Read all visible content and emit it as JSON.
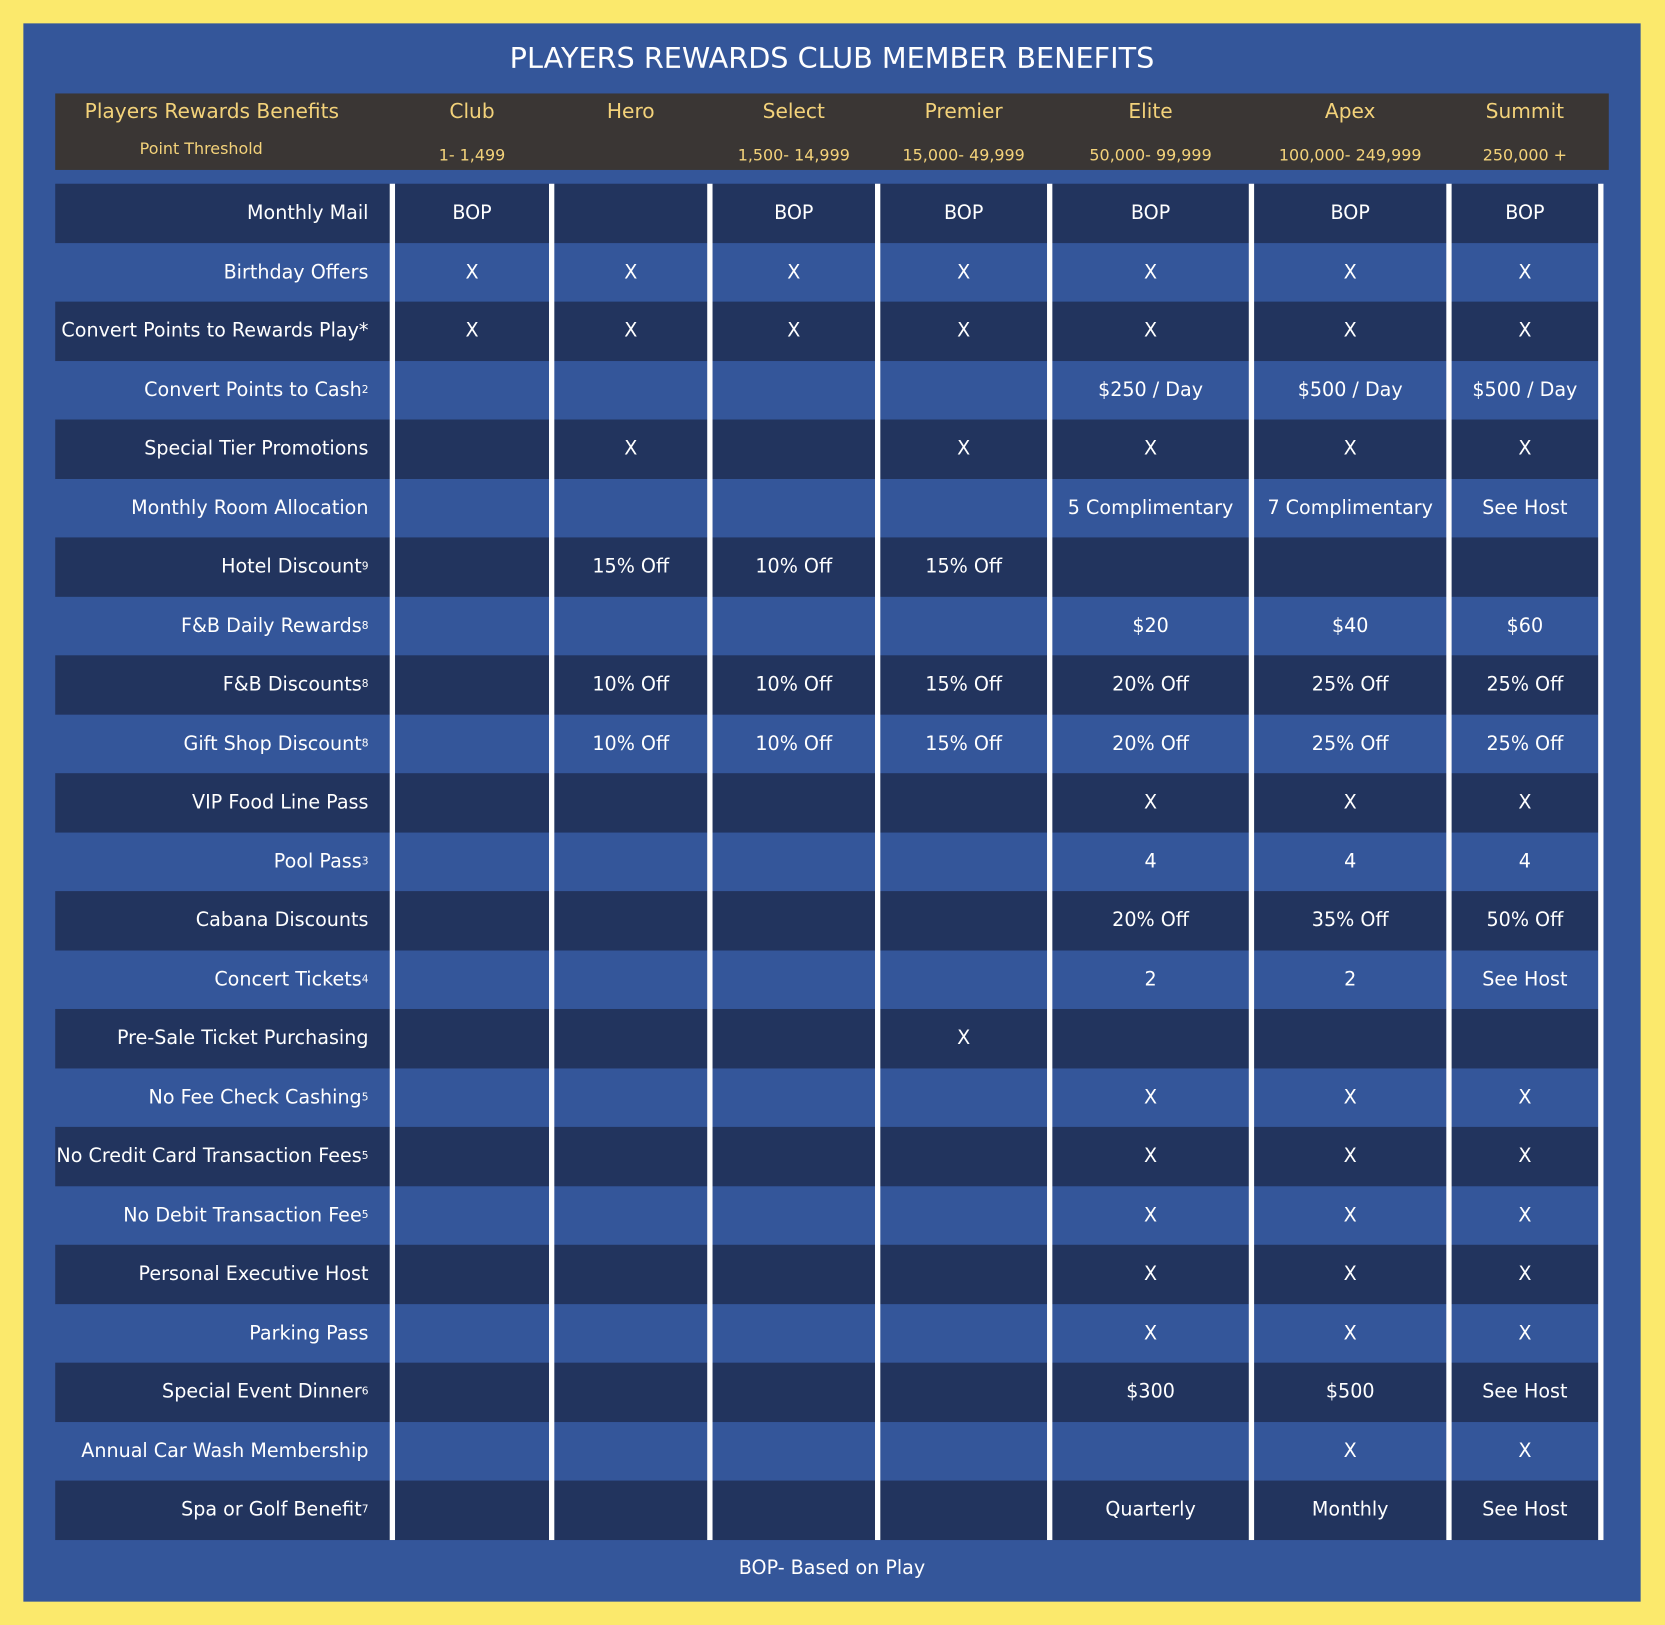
{
  "title": "PLAYERS REWARDS CLUB MEMBER BENEFITS",
  "header": {
    "label": "Players Rewards Benefits",
    "threshold_label": "Point Threshold",
    "columns": [
      {
        "name": "Club",
        "threshold": "1- 1,499"
      },
      {
        "name": "Hero",
        "threshold": null
      },
      {
        "name": "Select",
        "threshold": "1,500- 14,999"
      },
      {
        "name": "Premier",
        "threshold": "15,000- 49,999"
      },
      {
        "name": "Elite",
        "threshold": "50,000- 99,999"
      },
      {
        "name": "Apex",
        "threshold": "100,000- 249,999"
      },
      {
        "name": "Summit",
        "threshold": "250,000 +"
      }
    ]
  },
  "table": {
    "rows": [
      {
        "label": "Monthly Mail",
        "note": null,
        "cells": [
          "BOP",
          null,
          "BOP",
          "BOP",
          "BOP",
          "BOP",
          "BOP"
        ]
      },
      {
        "label": "Birthday Offers",
        "note": null,
        "cells": [
          "X",
          "X",
          "X",
          "X",
          "X",
          "X",
          "X"
        ]
      },
      {
        "label": "Convert Points to Rewards Play*",
        "note": null,
        "cells": [
          "X",
          "X",
          "X",
          "X",
          "X",
          "X",
          "X"
        ]
      },
      {
        "label": "Convert Points to Cash",
        "note": "2",
        "cells": [
          null,
          null,
          null,
          null,
          "$250 / Day",
          "$500 / Day",
          "$500 / Day"
        ]
      },
      {
        "label": "Special Tier Promotions",
        "note": null,
        "cells": [
          null,
          "X",
          null,
          "X",
          "X",
          "X",
          "X"
        ]
      },
      {
        "label": "Monthly Room Allocation",
        "note": null,
        "cells": [
          null,
          null,
          null,
          null,
          "5 Complimentary",
          "7 Complimentary",
          "See Host"
        ]
      },
      {
        "label": "Hotel Discount",
        "note": "9",
        "cells": [
          null,
          "15% Off",
          "10% Off",
          "15% Off",
          null,
          null,
          null
        ]
      },
      {
        "label": "F&B Daily Rewards",
        "note": "8",
        "cells": [
          null,
          null,
          null,
          null,
          "$20",
          "$40",
          "$60"
        ]
      },
      {
        "label": "F&B Discounts",
        "note": "8",
        "cells": [
          null,
          "10% Off",
          "10% Off",
          "15% Off",
          "20% Off",
          "25% Off",
          "25% Off"
        ]
      },
      {
        "label": "Gift Shop Discount",
        "note": "8",
        "cells": [
          null,
          "10% Off",
          "10% Off",
          "15% Off",
          "20% Off",
          "25% Off",
          "25% Off"
        ]
      },
      {
        "label": "VIP Food Line Pass",
        "note": null,
        "cells": [
          null,
          null,
          null,
          null,
          "X",
          "X",
          "X"
        ]
      },
      {
        "label": "Pool Pass",
        "note": "3",
        "cells": [
          null,
          null,
          null,
          null,
          "4",
          "4",
          "4"
        ]
      },
      {
        "label": "Cabana Discounts",
        "note": null,
        "cells": [
          null,
          null,
          null,
          null,
          "20% Off",
          "35% Off",
          "50% Off"
        ]
      },
      {
        "label": "Concert Tickets",
        "note": "4",
        "cells": [
          null,
          null,
          null,
          null,
          "2",
          "2",
          "See Host"
        ]
      },
      {
        "label": "Pre-Sale Ticket Purchasing",
        "note": null,
        "cells": [
          null,
          null,
          null,
          "X",
          null,
          null,
          null
        ]
      },
      {
        "label": "No Fee Check Cashing",
        "note": "5",
        "cells": [
          null,
          null,
          null,
          null,
          "X",
          "X",
          "X"
        ]
      },
      {
        "label": "No Credit Card Transaction Fees",
        "note": "5",
        "cells": [
          null,
          null,
          null,
          null,
          "X",
          "X",
          "X"
        ]
      },
      {
        "label": "No Debit Transaction Fee",
        "note": "5",
        "cells": [
          null,
          null,
          null,
          null,
          "X",
          "X",
          "X"
        ]
      },
      {
        "label": "Personal Executive Host",
        "note": null,
        "cells": [
          null,
          null,
          null,
          null,
          "X",
          "X",
          "X"
        ]
      },
      {
        "label": "Parking Pass",
        "note": null,
        "cells": [
          null,
          null,
          null,
          null,
          "X",
          "X",
          "X"
        ]
      },
      {
        "label": "Special Event Dinner",
        "note": "6",
        "cells": [
          null,
          null,
          null,
          null,
          "$300",
          "$500",
          "See Host"
        ]
      },
      {
        "label": "Annual Car Wash Membership",
        "note": null,
        "cells": [
          null,
          null,
          null,
          null,
          null,
          "X",
          "X"
        ]
      },
      {
        "label": "Spa or Golf Benefit",
        "note": "7",
        "cells": [
          null,
          null,
          null,
          null,
          "Quarterly",
          "Monthly",
          "See Host"
        ]
      }
    ]
  },
  "footer": "BOP- Based on Play"
}
